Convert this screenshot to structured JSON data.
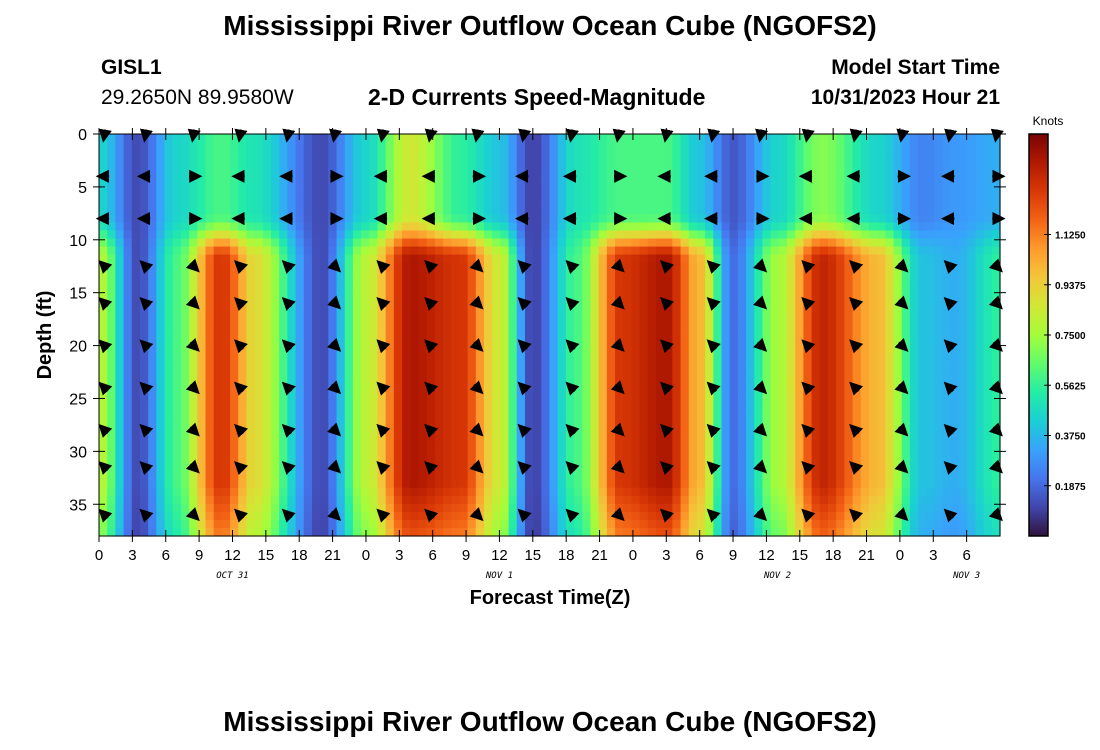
{
  "header": {
    "title": "Mississippi River Outflow Ocean Cube (NGOFS2)",
    "station_id": "GISL1",
    "station_coords": "29.2650N  89.9580W",
    "subtitle": "2-D Currents Speed-Magnitude",
    "model_start_label": "Model Start Time",
    "model_start_value": "10/31/2023 Hour 21"
  },
  "footer": {
    "title": "Mississippi River Outflow Ocean Cube (NGOFS2)"
  },
  "colors": {
    "colormap": [
      "#30123b",
      "#4145ab",
      "#4675ed",
      "#39a2fc",
      "#1bcfd4",
      "#24eca6",
      "#61fc6c",
      "#a4fc3b",
      "#d1e834",
      "#f3c63a",
      "#fe9b2d",
      "#f36315",
      "#d93806",
      "#b11901",
      "#7a0403"
    ],
    "arrow": "#000000"
  },
  "chart_data": {
    "type": "heatmap",
    "title": "2-D Currents Speed-Magnitude",
    "xlabel": "Forecast Time(Z)",
    "ylabel": "Depth (ft)",
    "colorbar_label": "Knots",
    "x_range_hours": [
      0,
      81
    ],
    "y_range_ft": [
      0,
      38
    ],
    "y_ticks": [
      0,
      5,
      10,
      15,
      20,
      25,
      30,
      35
    ],
    "x_ticks": [
      {
        "h": 0,
        "label": "0"
      },
      {
        "h": 3,
        "label": "3"
      },
      {
        "h": 6,
        "label": "6"
      },
      {
        "h": 9,
        "label": "9"
      },
      {
        "h": 12,
        "label": "12"
      },
      {
        "h": 15,
        "label": "15"
      },
      {
        "h": 18,
        "label": "18"
      },
      {
        "h": 21,
        "label": "21"
      },
      {
        "h": 24,
        "label": "0"
      },
      {
        "h": 27,
        "label": "3"
      },
      {
        "h": 30,
        "label": "6"
      },
      {
        "h": 33,
        "label": "9"
      },
      {
        "h": 36,
        "label": "12"
      },
      {
        "h": 39,
        "label": "15"
      },
      {
        "h": 42,
        "label": "18"
      },
      {
        "h": 45,
        "label": "21"
      },
      {
        "h": 48,
        "label": "0"
      },
      {
        "h": 51,
        "label": "3"
      },
      {
        "h": 54,
        "label": "6"
      },
      {
        "h": 57,
        "label": "9"
      },
      {
        "h": 60,
        "label": "12"
      },
      {
        "h": 63,
        "label": "15"
      },
      {
        "h": 66,
        "label": "18"
      },
      {
        "h": 69,
        "label": "21"
      },
      {
        "h": 72,
        "label": "0"
      },
      {
        "h": 75,
        "label": "3"
      },
      {
        "h": 78,
        "label": "6"
      }
    ],
    "date_labels": [
      {
        "h": 12,
        "label": "OCT 31"
      },
      {
        "h": 36,
        "label": "NOV 1"
      },
      {
        "h": 61,
        "label": "NOV 2"
      },
      {
        "h": 78,
        "label": "NOV 3"
      }
    ],
    "colorbar": {
      "min": 0,
      "max": 1.5,
      "ticks": [
        0.1875,
        0.375,
        0.5625,
        0.75,
        0.9375,
        1.125
      ],
      "tick_labels": [
        "0.1875",
        "0.3750",
        "0.5625",
        "0.7500",
        "0.9375",
        "1.1250"
      ]
    },
    "speed_profile": {
      "description": "surface-layer (0-10 ft) and bottom-layer (11-38 ft) speed in knots vs forecast hour",
      "hours": [
        0,
        3.5,
        7,
        11,
        14,
        20,
        24,
        28,
        32.5,
        36,
        39,
        43,
        47,
        51,
        54,
        57,
        61,
        65,
        70,
        74,
        77,
        81
      ],
      "surface_knots": [
        0.45,
        0.12,
        0.45,
        0.6,
        0.5,
        0.12,
        0.45,
        0.85,
        0.55,
        0.4,
        0.1,
        0.5,
        0.6,
        0.6,
        0.4,
        0.15,
        0.45,
        0.7,
        0.45,
        0.25,
        0.3,
        0.35
      ],
      "bottom_knots": [
        0.8,
        0.12,
        0.6,
        1.3,
        0.9,
        0.12,
        0.8,
        1.4,
        1.3,
        0.85,
        0.1,
        0.6,
        1.3,
        1.4,
        1.0,
        0.2,
        0.75,
        1.35,
        1.0,
        0.4,
        0.35,
        0.55
      ]
    },
    "vectors": {
      "depths_ft": [
        0,
        4,
        8,
        12.5,
        16,
        20,
        24,
        28,
        31.5,
        36
      ],
      "hours": [
        0.5,
        4.2,
        8.5,
        12.7,
        17,
        21.2,
        25.5,
        29.8,
        34,
        38.2,
        42.5,
        46.7,
        51,
        55.2,
        59.5,
        63.7,
        68,
        72.2,
        76.5,
        80.7
      ]
    }
  }
}
